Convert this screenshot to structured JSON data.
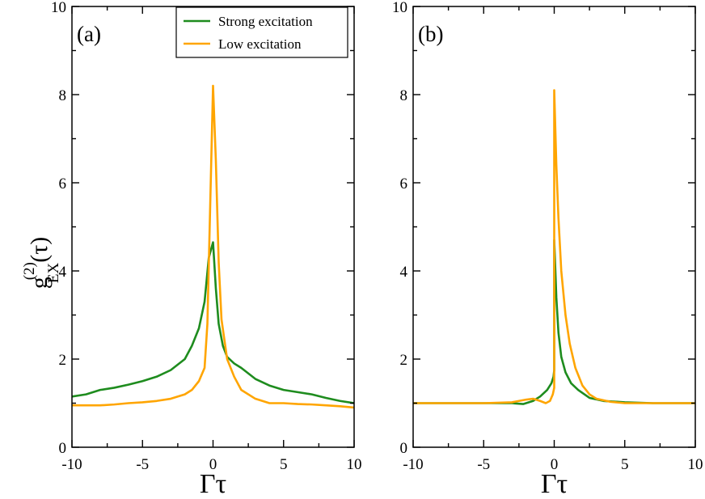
{
  "chart_data": [
    {
      "type": "line",
      "panel_label": "(a)",
      "xlabel": "Γτ",
      "ylabel": {
        "base": "g",
        "superscript": "(2)",
        "subscript": "EX",
        "arg": "(τ)"
      },
      "xlim": [
        -10,
        10
      ],
      "ylim": [
        0,
        10
      ],
      "xticks": [
        -10,
        -5,
        0,
        5,
        10
      ],
      "yticks": [
        0,
        2,
        4,
        6,
        8,
        10
      ],
      "grid": false,
      "legend": {
        "position": "top-right",
        "entries": [
          {
            "label": "Strong excitation",
            "color": "#1e8c1e"
          },
          {
            "label": "Low excitation",
            "color": "#ffa500"
          }
        ]
      },
      "series": [
        {
          "name": "Strong excitation",
          "color": "#1e8c1e",
          "x": [
            -10,
            -9,
            -8,
            -7,
            -6,
            -5,
            -4,
            -3,
            -2,
            -1.5,
            -1,
            -0.6,
            -0.3,
            0,
            0.2,
            0.4,
            0.7,
            1,
            1.5,
            2,
            3,
            4,
            5,
            6,
            7,
            8,
            9,
            10
          ],
          "y": [
            1.15,
            1.2,
            1.3,
            1.35,
            1.42,
            1.5,
            1.6,
            1.75,
            2.0,
            2.3,
            2.7,
            3.3,
            4.3,
            4.65,
            3.6,
            2.8,
            2.3,
            2.05,
            1.9,
            1.8,
            1.55,
            1.4,
            1.3,
            1.25,
            1.2,
            1.12,
            1.05,
            1.0
          ]
        },
        {
          "name": "Low excitation",
          "color": "#ffa500",
          "x": [
            -10,
            -9,
            -8,
            -7,
            -6,
            -5,
            -4,
            -3,
            -2,
            -1.5,
            -1,
            -0.6,
            -0.4,
            -0.2,
            0,
            0.2,
            0.4,
            0.6,
            1,
            1.5,
            2,
            3,
            4,
            5,
            6,
            7,
            8,
            9,
            10
          ],
          "y": [
            0.95,
            0.95,
            0.95,
            0.97,
            1.0,
            1.02,
            1.05,
            1.1,
            1.2,
            1.3,
            1.5,
            1.8,
            2.8,
            5.5,
            8.2,
            6.5,
            4.2,
            2.9,
            2.0,
            1.6,
            1.3,
            1.1,
            1.0,
            1.0,
            0.98,
            0.97,
            0.95,
            0.93,
            0.9
          ]
        }
      ]
    },
    {
      "type": "line",
      "panel_label": "(b)",
      "xlabel": "Γτ",
      "xlim": [
        -10,
        10
      ],
      "ylim": [
        0,
        10
      ],
      "xticks": [
        -10,
        -5,
        0,
        5,
        10
      ],
      "yticks": [
        0,
        2,
        4,
        6,
        8,
        10
      ],
      "grid": false,
      "series": [
        {
          "name": "Strong excitation",
          "color": "#1e8c1e",
          "x": [
            -10,
            -5,
            -3,
            -2.2,
            -1.5,
            -1,
            -0.5,
            -0.2,
            -0.05,
            0,
            0,
            0.15,
            0.3,
            0.5,
            0.8,
            1.2,
            1.7,
            2.5,
            3.5,
            5,
            7,
            10
          ],
          "y": [
            1.0,
            1.0,
            1.0,
            0.98,
            1.05,
            1.15,
            1.3,
            1.45,
            1.6,
            1.75,
            4.7,
            3.4,
            2.6,
            2.05,
            1.7,
            1.45,
            1.3,
            1.12,
            1.05,
            1.02,
            1.0,
            1.0
          ]
        },
        {
          "name": "Low excitation",
          "color": "#ffa500",
          "x": [
            -10,
            -5,
            -3,
            -2.5,
            -2,
            -1.5,
            -1,
            -0.6,
            -0.3,
            -0.1,
            0,
            0,
            0.15,
            0.3,
            0.5,
            0.8,
            1.1,
            1.5,
            2,
            2.5,
            3,
            4,
            5,
            7,
            10
          ],
          "y": [
            1.0,
            1.0,
            1.02,
            1.05,
            1.08,
            1.1,
            1.05,
            1.0,
            1.05,
            1.2,
            1.35,
            8.1,
            6.4,
            5.2,
            4.0,
            3.0,
            2.35,
            1.8,
            1.4,
            1.2,
            1.1,
            1.03,
            1.0,
            1.0,
            1.0
          ]
        }
      ]
    }
  ]
}
